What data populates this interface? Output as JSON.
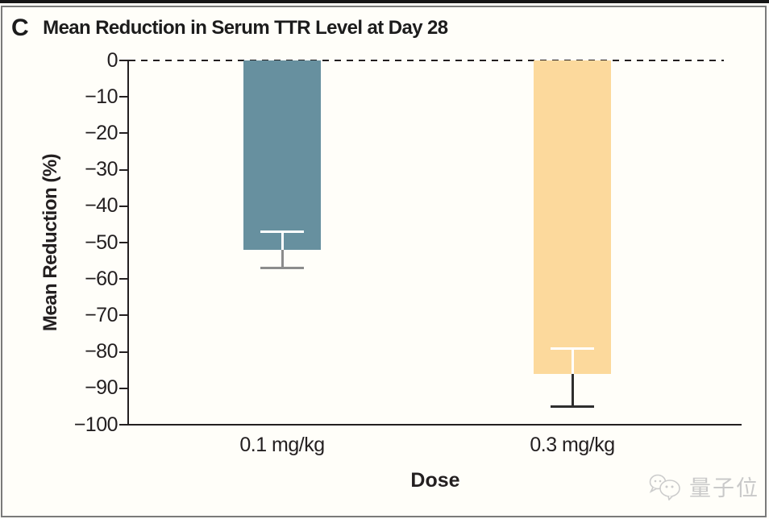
{
  "panel": {
    "letter": "C",
    "title": "Mean Reduction in Serum TTR Level at Day 28"
  },
  "watermark": {
    "text": "量子位",
    "logo": "chat-bubbles-faces",
    "color": "#c9c9c9"
  },
  "chart_data": {
    "type": "bar",
    "title": "Mean Reduction in Serum TTR Level at Day 28",
    "categories": [
      "0.1 mg/kg",
      "0.3 mg/kg"
    ],
    "values": [
      -52,
      -86
    ],
    "error_high": [
      -47,
      -79
    ],
    "error_low": [
      -57,
      -95
    ],
    "xlabel": "Dose",
    "ylabel": "Mean Reduction (%)",
    "ylim": [
      -100,
      0
    ],
    "yticks": [
      0,
      -10,
      -20,
      -30,
      -40,
      -50,
      -60,
      -70,
      -80,
      -90,
      -100
    ],
    "grid": false,
    "legend": false,
    "zero_line_style": "dashed",
    "bar_colors": [
      "#67909f",
      "#fcd99c"
    ],
    "error_bar_inner_color": "#ffffff",
    "error_bar_outer_colors": [
      "#8c8c8c",
      "#2e2e2e"
    ],
    "axis_color": "#231f20"
  }
}
